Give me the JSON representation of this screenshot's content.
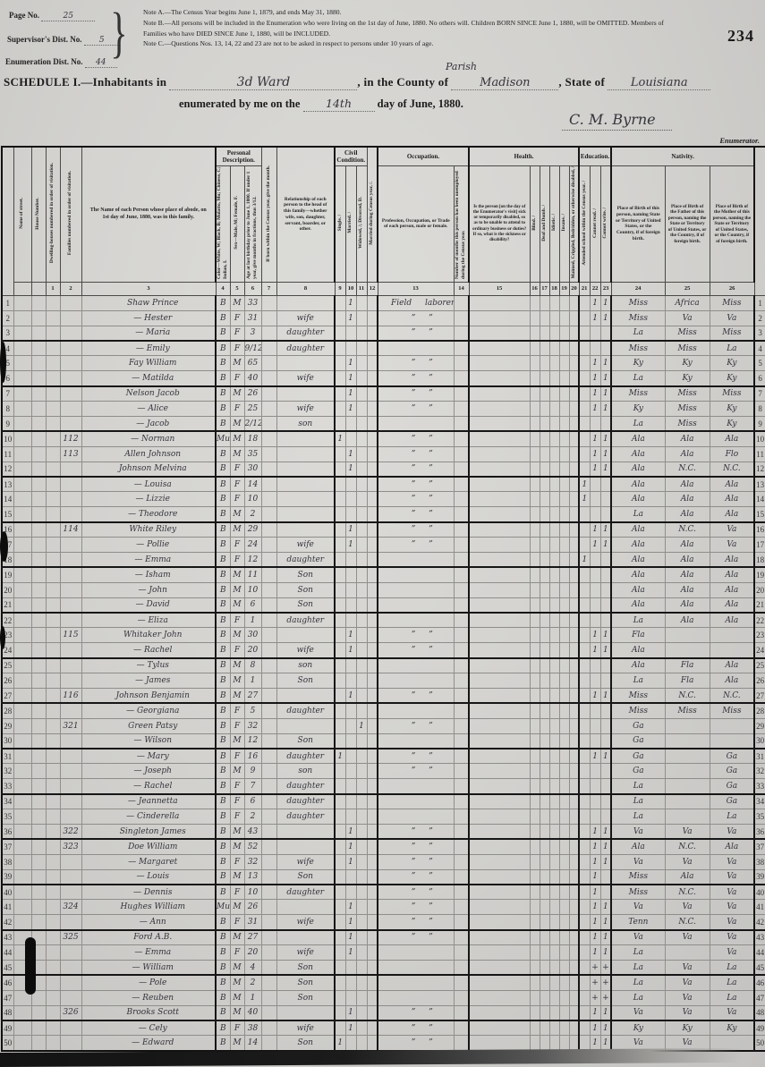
{
  "top": {
    "stamp": "234",
    "page_no_label": "Page No.",
    "page_no": "25",
    "sup_label": "Supervisor's Dist. No.",
    "sup": "5",
    "enum_label": "Enumeration Dist. No.",
    "enum": "44",
    "note_a": "Note A.—The Census Year begins June 1, 1879, and ends May 31, 1880.",
    "note_b": "Note B.—All persons will be included in the Enumeration who were living on the 1st day of June, 1880.  No others will.  Children BORN SINCE June 1, 1880, will be OMITTED.  Members of Families who have DIED SINCE June 1, 1880, will be INCLUDED.",
    "note_c": "Note C.—Questions Nos. 13, 14, 22 and 23 are not to be asked in respect to persons under 10 years of age."
  },
  "schedule": {
    "title": "SCHEDULE I.—Inhabitants in",
    "ward": "3d Ward",
    "county_label": ", in the County of",
    "parish": "Parish",
    "county": "Madison",
    "state_label": ", State of",
    "state": "Louisiana",
    "line2_pre": "enumerated by me on the",
    "day": "14th",
    "line2_post": "day of June, 1880.",
    "signature": "C. M. Byrne",
    "enumerator": "Enumerator."
  },
  "table": {
    "groups": {
      "personal": "Personal Description.",
      "civil": "Civil Condition.",
      "occupation": "Occupation.",
      "health": "Health.",
      "education": "Education.",
      "nativity": "Nativity."
    },
    "cols": {
      "street": "Name of street.",
      "house": "House Number.",
      "dwelling": "Dwelling-houses numbered in order of visitation.",
      "family": "Families numbered in order of visitation.",
      "name": "The Name of each Person whose place of abode, on 1st day of June, 1880, was in this family.",
      "color": "Color—White, W; Black, B; Mulatto, Mu; Chinese, C; Indian, I.",
      "sex": "Sex—Male, M; Female, F.",
      "age": "Age at last birthday prior to June 1, 1880.  If under 1 year, give months in fractions, thus 3/12.",
      "month": "If born within the Census year, give the month.",
      "rel": "Relationship of each person to the head of this family—whether wife, son, daughter, servant, boarder, or other.",
      "single": "Single. /",
      "married": "Married. /",
      "widowed": "Widowed, /; Divorced, D.",
      "maryear": "Married during Census year, /.",
      "occ": "Profession, Occupation, or Trade of each person, male or female.",
      "unemp": "Number of months this person has been unemployed during the Census year.",
      "sick": "Is the person [on the day of the Enumerator's visit] sick or temporarily disabled, so as to be unable to attend to ordinary business or duties?  If so, what is the sickness or disability?",
      "blind": "Blind. /",
      "deaf": "Deaf and Dumb. /",
      "idiotic": "Idiotic. /",
      "insane": "Insane. /",
      "maimed": "Maimed, Crippled, Bedridden, or otherwise disabled, /",
      "school": "Attended school within the Census year. /",
      "read": "Cannot read. /",
      "write": "Cannot write. /",
      "bp": "Place of Birth of this person, naming State or Territory of United States, or the Country, if of foreign birth.",
      "fbp": "Place of Birth of the Father of this person, naming the State or Territory of United States, or the Country, if of foreign birth.",
      "mbp": "Place of Birth of the Mother of this person, naming the State or Territory of United States, or the Country, if of foreign birth."
    },
    "nums": [
      "1",
      "2",
      "3",
      "4",
      "5",
      "6",
      "7",
      "8",
      "9",
      "10",
      "11",
      "12",
      "13",
      "14",
      "15",
      "16",
      "17",
      "18",
      "19",
      "20",
      "21",
      "22",
      "23",
      "24",
      "25",
      "26"
    ],
    "rows": [
      {
        "n": 1,
        "name": "Shaw Prince",
        "c": "B",
        "s": "M",
        "a": "33",
        "mr": "1",
        "occ": "Field laborer",
        "rd": "1",
        "wr": "1",
        "bp": "Miss",
        "fb": "Africa",
        "mb": "Miss"
      },
      {
        "n": 2,
        "name": "— Hester",
        "c": "B",
        "s": "F",
        "a": "31",
        "rel": "wife",
        "mr": "1",
        "occ": "” ”",
        "rd": "1",
        "wr": "1",
        "bp": "Miss",
        "fb": "Va",
        "mb": "Va"
      },
      {
        "n": 3,
        "name": "— Maria",
        "c": "B",
        "s": "F",
        "a": "3",
        "rel": "daughter",
        "occ": "” ”",
        "bp": "La",
        "fb": "Miss",
        "mb": "Miss"
      },
      {
        "n": 4,
        "name": "— Emily",
        "c": "B",
        "s": "F",
        "a": "9/12",
        "rel": "daughter",
        "bp": "Miss",
        "fb": "Miss",
        "mb": "La"
      },
      {
        "n": 5,
        "name": "Fay William",
        "c": "B",
        "s": "M",
        "a": "65",
        "mr": "1",
        "occ": "” ”",
        "rd": "1",
        "wr": "1",
        "bp": "Ky",
        "fb": "Ky",
        "mb": "Ky"
      },
      {
        "n": 6,
        "name": "— Matilda",
        "c": "B",
        "s": "F",
        "a": "40",
        "rel": "wife",
        "mr": "1",
        "occ": "” ”",
        "rd": "1",
        "wr": "1",
        "bp": "La",
        "fb": "Ky",
        "mb": "Ky"
      },
      {
        "n": 7,
        "name": "Nelson Jacob",
        "c": "B",
        "s": "M",
        "a": "26",
        "mr": "1",
        "occ": "” ”",
        "rd": "1",
        "wr": "1",
        "bp": "Miss",
        "fb": "Miss",
        "mb": "Miss"
      },
      {
        "n": 8,
        "name": "— Alice",
        "c": "B",
        "s": "F",
        "a": "25",
        "rel": "wife",
        "mr": "1",
        "occ": "” ”",
        "rd": "1",
        "wr": "1",
        "bp": "Ky",
        "fb": "Miss",
        "mb": "Ky"
      },
      {
        "n": 9,
        "name": "— Jacob",
        "c": "B",
        "s": "M",
        "a": "2/12",
        "rel": "son",
        "bp": "La",
        "fb": "Miss",
        "mb": "Ky"
      },
      {
        "n": 10,
        "fam": "112",
        "name": "— Norman",
        "c": "Mu",
        "s": "M",
        "a": "18",
        "sg": "1",
        "occ": "” ”",
        "rd": "1",
        "wr": "1",
        "bp": "Ala",
        "fb": "Ala",
        "mb": "Ala"
      },
      {
        "n": 11,
        "fam": "113",
        "name": "Allen Johnson",
        "c": "B",
        "s": "M",
        "a": "35",
        "mr": "1",
        "occ": "” ”",
        "rd": "1",
        "wr": "1",
        "bp": "Ala",
        "fb": "Ala",
        "mb": "Flo"
      },
      {
        "n": 12,
        "name": "Johnson Melvina",
        "c": "B",
        "s": "F",
        "a": "30",
        "mr": "1",
        "occ": "” ”",
        "rd": "1",
        "wr": "1",
        "bp": "Ala",
        "fb": "N.C.",
        "mb": "N.C."
      },
      {
        "n": 13,
        "name": "— Louisa",
        "c": "B",
        "s": "F",
        "a": "14",
        "occ": "” ”",
        "sch": "1",
        "bp": "Ala",
        "fb": "Ala",
        "mb": "Ala"
      },
      {
        "n": 14,
        "name": "— Lizzie",
        "c": "B",
        "s": "F",
        "a": "10",
        "occ": "” ”",
        "sch": "1",
        "bp": "Ala",
        "fb": "Ala",
        "mb": "Ala"
      },
      {
        "n": 15,
        "name": "— Theodore",
        "c": "B",
        "s": "M",
        "a": "2",
        "occ": "” ”",
        "bp": "La",
        "fb": "Ala",
        "mb": "Ala"
      },
      {
        "n": 16,
        "fam": "114",
        "name": "White Riley",
        "c": "B",
        "s": "M",
        "a": "29",
        "mr": "1",
        "occ": "” ”",
        "rd": "1",
        "wr": "1",
        "bp": "Ala",
        "fb": "N.C.",
        "mb": "Va"
      },
      {
        "n": 17,
        "name": "— Pollie",
        "c": "B",
        "s": "F",
        "a": "24",
        "rel": "wife",
        "mr": "1",
        "occ": "” ”",
        "rd": "1",
        "wr": "1",
        "bp": "Ala",
        "fb": "Ala",
        "mb": "Va"
      },
      {
        "n": 18,
        "name": "— Emma",
        "c": "B",
        "s": "F",
        "a": "12",
        "rel": "daughter",
        "sch": "1",
        "bp": "Ala",
        "fb": "Ala",
        "mb": "Ala"
      },
      {
        "n": 19,
        "name": "— Isham",
        "c": "B",
        "s": "M",
        "a": "11",
        "rel": "Son",
        "bp": "Ala",
        "fb": "Ala",
        "mb": "Ala"
      },
      {
        "n": 20,
        "name": "— John",
        "c": "B",
        "s": "M",
        "a": "10",
        "rel": "Son",
        "bp": "Ala",
        "fb": "Ala",
        "mb": "Ala"
      },
      {
        "n": 21,
        "name": "— David",
        "c": "B",
        "s": "M",
        "a": "6",
        "rel": "Son",
        "bp": "Ala",
        "fb": "Ala",
        "mb": "Ala"
      },
      {
        "n": 22,
        "name": "— Eliza",
        "c": "B",
        "s": "F",
        "a": "1",
        "rel": "daughter",
        "bp": "La",
        "fb": "Ala",
        "mb": "Ala"
      },
      {
        "n": 23,
        "fam": "115",
        "name": "Whitaker John",
        "c": "B",
        "s": "M",
        "a": "30",
        "mr": "1",
        "occ": "” ”",
        "rd": "1",
        "wr": "1",
        "bp": "Fla"
      },
      {
        "n": 24,
        "name": "— Rachel",
        "c": "B",
        "s": "F",
        "a": "20",
        "rel": "wife",
        "mr": "1",
        "occ": "” ”",
        "rd": "1",
        "wr": "1",
        "bp": "Ala"
      },
      {
        "n": 25,
        "name": "— Tylus",
        "c": "B",
        "s": "M",
        "a": "8",
        "rel": "son",
        "bp": "Ala",
        "fb": "Fla",
        "mb": "Ala"
      },
      {
        "n": 26,
        "name": "— James",
        "c": "B",
        "s": "M",
        "a": "1",
        "rel": "Son",
        "bp": "La",
        "fb": "Fla",
        "mb": "Ala"
      },
      {
        "n": 27,
        "fam": "116",
        "name": "Johnson Benjamin",
        "c": "B",
        "s": "M",
        "a": "27",
        "mr": "1",
        "occ": "” ”",
        "rd": "1",
        "wr": "1",
        "bp": "Miss",
        "fb": "N.C.",
        "mb": "N.C."
      },
      {
        "n": 28,
        "name": "— Georgiana",
        "c": "B",
        "s": "F",
        "a": "5",
        "rel": "daughter",
        "bp": "Miss",
        "fb": "Miss",
        "mb": "Miss"
      },
      {
        "n": 29,
        "fam": "321",
        "name": "Green Patsy",
        "c": "B",
        "s": "F",
        "a": "32",
        "wd": "1",
        "occ": "” ”",
        "bp": "Ga"
      },
      {
        "n": 30,
        "name": "— Wilson",
        "c": "B",
        "s": "M",
        "a": "12",
        "rel": "Son",
        "bp": "Ga"
      },
      {
        "n": 31,
        "name": "— Mary",
        "c": "B",
        "s": "F",
        "a": "16",
        "rel": "daughter",
        "sg": "1",
        "occ": "” ”",
        "rd": "1",
        "wr": "1",
        "bp": "Ga",
        "mb": "Ga"
      },
      {
        "n": 32,
        "name": "— Joseph",
        "c": "B",
        "s": "M",
        "a": "9",
        "rel": "son",
        "occ": "” ”",
        "bp": "Ga",
        "mb": "Ga"
      },
      {
        "n": 33,
        "name": "— Rachel",
        "c": "B",
        "s": "F",
        "a": "7",
        "rel": "daughter",
        "bp": "La",
        "mb": "Ga"
      },
      {
        "n": 34,
        "name": "— Jeannetta",
        "c": "B",
        "s": "F",
        "a": "6",
        "rel": "daughter",
        "bp": "La",
        "mb": "Ga"
      },
      {
        "n": 35,
        "name": "— Cinderella",
        "c": "B",
        "s": "F",
        "a": "2",
        "rel": "daughter",
        "bp": "La",
        "mb": "La"
      },
      {
        "n": 36,
        "fam": "322",
        "name": "Singleton James",
        "c": "B",
        "s": "M",
        "a": "43",
        "mr": "1",
        "occ": "” ”",
        "rd": "1",
        "wr": "1",
        "bp": "Va",
        "fb": "Va",
        "mb": "Va"
      },
      {
        "n": 37,
        "fam": "323",
        "name": "Doe William",
        "c": "B",
        "s": "M",
        "a": "52",
        "mr": "1",
        "occ": "” ”",
        "rd": "1",
        "wr": "1",
        "bp": "Ala",
        "fb": "N.C.",
        "mb": "Ala"
      },
      {
        "n": 38,
        "name": "— Margaret",
        "c": "B",
        "s": "F",
        "a": "32",
        "rel": "wife",
        "mr": "1",
        "occ": "” ”",
        "rd": "1",
        "wr": "1",
        "bp": "Va",
        "fb": "Va",
        "mb": "Va"
      },
      {
        "n": 39,
        "name": "— Louis",
        "c": "B",
        "s": "M",
        "a": "13",
        "rel": "Son",
        "occ": "” ”",
        "rd": "1",
        "bp": "Miss",
        "fb": "Ala",
        "mb": "Va"
      },
      {
        "n": 40,
        "name": "— Dennis",
        "c": "B",
        "s": "F",
        "a": "10",
        "rel": "daughter",
        "occ": "” ”",
        "rd": "1",
        "bp": "Miss",
        "fb": "N.C.",
        "mb": "Va"
      },
      {
        "n": 41,
        "fam": "324",
        "name": "Hughes William",
        "c": "Mu",
        "s": "M",
        "a": "26",
        "mr": "1",
        "occ": "” ”",
        "rd": "1",
        "wr": "1",
        "bp": "Va",
        "fb": "Va",
        "mb": "Va"
      },
      {
        "n": 42,
        "name": "— Ann",
        "c": "B",
        "s": "F",
        "a": "31",
        "rel": "wife",
        "mr": "1",
        "occ": "” ”",
        "rd": "1",
        "wr": "1",
        "bp": "Tenn",
        "fb": "N.C.",
        "mb": "Va"
      },
      {
        "n": 43,
        "fam": "325",
        "name": "Ford A.B.",
        "c": "B",
        "s": "M",
        "a": "27",
        "mr": "1",
        "occ": "” ”",
        "rd": "1",
        "wr": "1",
        "bp": "Va",
        "fb": "Va",
        "mb": "Va"
      },
      {
        "n": 44,
        "name": "— Emma",
        "c": "B",
        "s": "F",
        "a": "20",
        "rel": "wife",
        "mr": "1",
        "rd": "1",
        "wr": "1",
        "bp": "La",
        "mb": "Va"
      },
      {
        "n": 45,
        "name": "— William",
        "c": "B",
        "s": "M",
        "a": "4",
        "rel": "Son",
        "rd": "+",
        "wr": "+",
        "bp": "La",
        "fb": "Va",
        "mb": "La"
      },
      {
        "n": 46,
        "name": "— Pole",
        "c": "B",
        "s": "M",
        "a": "2",
        "rel": "Son",
        "rd": "+",
        "wr": "+",
        "bp": "La",
        "fb": "Va",
        "mb": "La"
      },
      {
        "n": 47,
        "name": "— Reuben",
        "c": "B",
        "s": "M",
        "a": "1",
        "rel": "Son",
        "rd": "+",
        "wr": "+",
        "bp": "La",
        "fb": "Va",
        "mb": "La"
      },
      {
        "n": 48,
        "fam": "326",
        "name": "Brooks Scott",
        "c": "B",
        "s": "M",
        "a": "40",
        "mr": "1",
        "occ": "” ”",
        "rd": "1",
        "wr": "1",
        "bp": "Va",
        "fb": "Va",
        "mb": "Va"
      },
      {
        "n": 49,
        "name": "— Cely",
        "c": "B",
        "s": "F",
        "a": "38",
        "rel": "wife",
        "mr": "1",
        "occ": "” ”",
        "rd": "1",
        "wr": "1",
        "bp": "Ky",
        "fb": "Ky",
        "mb": "Ky"
      },
      {
        "n": 50,
        "name": "— Edward",
        "c": "B",
        "s": "M",
        "a": "14",
        "rel": "Son",
        "sg": "1",
        "occ": "” ”",
        "rd": "1",
        "wr": "1",
        "bp": "Va",
        "fb": "Va"
      }
    ]
  }
}
